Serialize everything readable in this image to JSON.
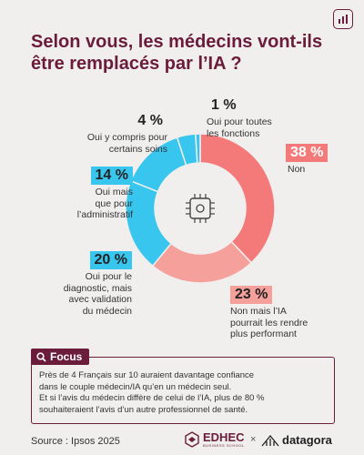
{
  "title": "Selon vous, les médecins vont-ils être remplacés par l’IA ?",
  "chart_data": {
    "type": "pie",
    "variant": "donut",
    "categories": [
      "Non",
      "Non mais l’IA pourrait les rendre plus performant",
      "Oui pour le diagnostic, mais avec validation du médecin",
      "Oui mais que pour l’administratif",
      "Oui y compris pour certains soins",
      "Oui pour toutes les fonctions"
    ],
    "values": [
      38,
      23,
      20,
      14,
      4,
      1
    ],
    "value_labels": [
      "38 %",
      "23 %",
      "20 %",
      "14 %",
      "4 %",
      "1 %"
    ],
    "colors": [
      "#f47a7a",
      "#f5a09a",
      "#38c6ef",
      "#38c6ef",
      "#38c6ef",
      "#38c6ef"
    ]
  },
  "labels": {
    "non": {
      "pct": "38 %",
      "lines": [
        "Non"
      ]
    },
    "non_ia": {
      "pct": "23 %",
      "lines": [
        "Non mais l’IA",
        "pourrait les rendre",
        "plus performant"
      ]
    },
    "diag": {
      "pct": "20 %",
      "lines": [
        "Oui pour le",
        "diagnostic, mais",
        "avec validation",
        "du médecin"
      ]
    },
    "admin": {
      "pct": "14 %",
      "lines": [
        "Oui mais",
        "que pour",
        "l’administratif"
      ]
    },
    "soins": {
      "pct": "4 %",
      "lines": [
        "Oui y compris pour",
        "certains soins"
      ]
    },
    "toutes": {
      "pct": "1 %",
      "lines": [
        "Oui pour toutes",
        "les fonctions"
      ]
    }
  },
  "focus": {
    "tag": "Focus",
    "lines": [
      "Près de 4 Français sur 10 auraient davantage confiance",
      "dans le couple médecin/IA qu’en un médecin seul.",
      "Et si l’avis du médecin diffère de celui de l’IA, plus de 80 %",
      "souhaiteraient l’avis d’un autre professionnel de santé."
    ]
  },
  "source": "Source : Ipsos 2025",
  "brand": {
    "edhec": "EDHEC",
    "edhec_sub": "BUSINESS SCHOOL",
    "separator": "×",
    "datagora": "datagora"
  },
  "icons": {
    "center": "ai-chip-icon",
    "focus": "search-icon",
    "corner": "datagora-logo-icon"
  }
}
